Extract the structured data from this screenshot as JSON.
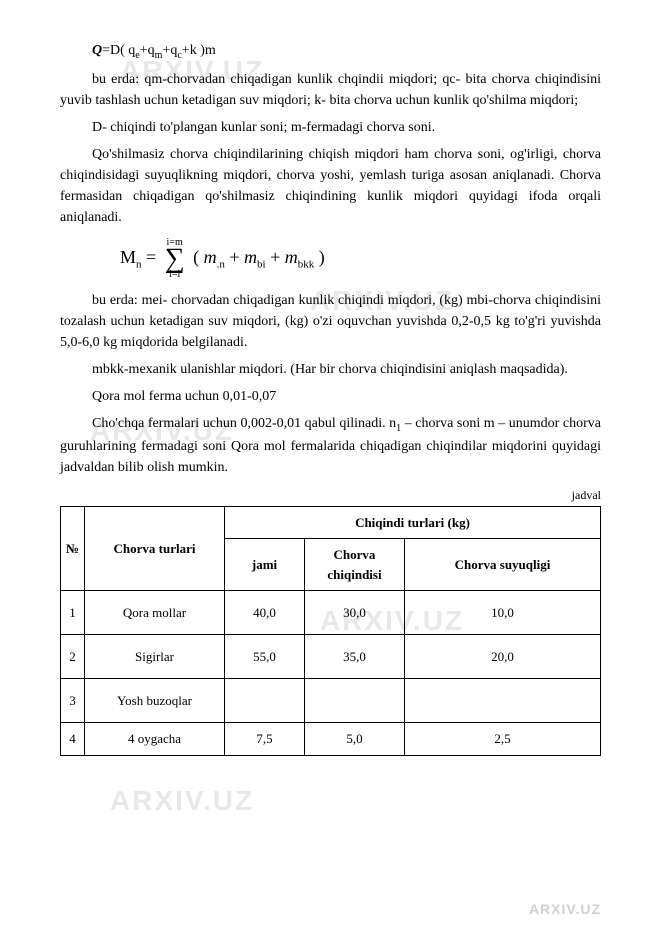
{
  "watermarks": {
    "text": "ARXIV.UZ",
    "footer": "ARXIV.UZ"
  },
  "para": {
    "formula1": "Q=D( qe+qm+qc+k )m",
    "p1": "bu erda: qm-chorvadan chiqadigan kunlik chqindii miqdori; qc- bita chorva chiqindisini yuvib tashlash uchun ketadigan suv miqdori; k- bita chorva uchun kunlik qo'shilma miqdori;",
    "p2": "D- chiqindi to'plangan kunlar soni; m-fermadagi chorva soni.",
    "p3": "Qo'shilmasiz chorva chiqindilarining chiqish miqdori ham chorva soni, og'irligi, chorva chiqindisidagi suyuqlikning miqdori, chorva yoshi, yemlash turiga asosan aniqlanadi. Chorva fermasidan chiqadigan qo'shilmasiz chiqindining kunlik miqdori quyidagi ifoda orqali aniqlanadi.",
    "formula2_left": "Mn =",
    "formula2_sigma_top": "i=m",
    "formula2_sigma_bot": "i=l",
    "formula2_right": "( m.n + mbi + mbkk )",
    "p4": "bu erda: mei- chorvadan chiqadigan kunlik chiqindi miqdori, (kg) mbi-chorva chiqindisini tozalash uchun ketadigan suv miqdori, (kg) o'zi oquvchan yuvishda 0,2-0,5 kg to'g'ri yuvishda 5,0-6,0 kg miqdorida belgilanadi.",
    "p5": "mbkk-mexanik ulanishlar miqdori. (Har bir chorva chiqindisini aniqlash maqsadida).",
    "p6": "Qora mol ferma uchun 0,01-0,07",
    "p7": "Cho'chqa fermalari uchun 0,002-0,01 qabul qilinadi. n1 – chorva soni m – unumdor chorva guruhlarining fermadagi soni Qora mol fermalarida chiqadigan chiqindilar miqdorini quyidagi jadvaldan bilib olish mumkin.",
    "jadval": "jadval"
  },
  "table": {
    "head": {
      "num": "№",
      "name": "Chorva turlari",
      "group": "Chiqindi turlari (kg)",
      "jami": "jami",
      "chiq": "Chorva chiqindisi",
      "suyuq": "Chorva suyuqligi"
    },
    "rows": [
      {
        "n": "1",
        "name": "Qora mollar",
        "jami": "40,0",
        "chiq": "30,0",
        "suyuq": "10,0"
      },
      {
        "n": "2",
        "name": "Sigirlar",
        "jami": "55,0",
        "chiq": "35,0",
        "suyuq": "20,0"
      },
      {
        "n": "3",
        "name": "Yosh buzoqlar",
        "jami": "",
        "chiq": "",
        "suyuq": ""
      },
      {
        "n": "4",
        "name": "4 oygacha",
        "jami": "7,5",
        "chiq": "5,0",
        "suyuq": "2,5"
      }
    ]
  }
}
